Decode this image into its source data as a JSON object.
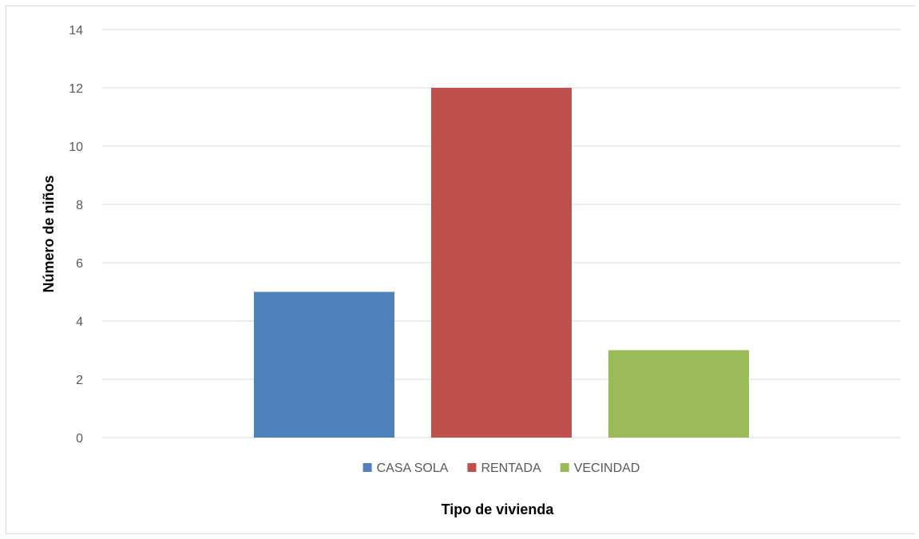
{
  "chart_data": {
    "type": "bar",
    "categories": [
      "CASA SOLA",
      "RENTADA",
      "VECINDAD"
    ],
    "values": [
      5,
      12,
      3
    ],
    "colors": [
      "#4f81bd",
      "#c0504d",
      "#9bbb59"
    ],
    "xlabel": "Tipo de vivienda",
    "ylabel": "Número de niños",
    "ylim": [
      0,
      14
    ],
    "yticks": [
      "0",
      "2",
      "4",
      "6",
      "8",
      "10",
      "12",
      "14"
    ],
    "grid": true,
    "gridline_color": "#d9d9d9",
    "legend": {
      "position": "bottom",
      "entries": [
        "CASA SOLA",
        "RENTADA",
        "VECINDAD"
      ]
    }
  }
}
